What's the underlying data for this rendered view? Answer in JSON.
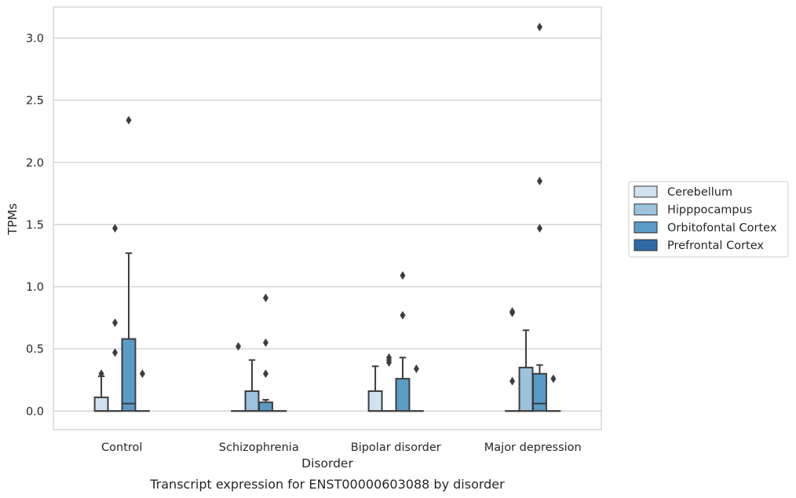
{
  "caption": "Transcript expression for ENST00000603088 by disorder",
  "chart_data": {
    "type": "box",
    "title": "",
    "xlabel": "Disorder",
    "ylabel": "TPMs",
    "ylim": [
      -0.15,
      3.25
    ],
    "yticks": [
      "0.0",
      "0.5",
      "1.0",
      "1.5",
      "2.0",
      "2.5",
      "3.0"
    ],
    "grid": true,
    "legend_position": "right",
    "categories": [
      "Control",
      "Schizophrenia",
      "Bipolar disorder",
      "Major depression"
    ],
    "series": [
      {
        "name": "Cerebellum",
        "color": "#d1e1f0",
        "boxes": [
          {
            "q1": 0.0,
            "median": 0.0,
            "q3": 0.11,
            "whisker_low": 0.0,
            "whisker_high": 0.28,
            "outliers": [
              0.3
            ]
          },
          {
            "q1": 0.0,
            "median": 0.0,
            "q3": 0.0,
            "whisker_low": 0.0,
            "whisker_high": 0.0,
            "outliers": [
              0.52
            ]
          },
          {
            "q1": 0.0,
            "median": 0.0,
            "q3": 0.16,
            "whisker_low": 0.0,
            "whisker_high": 0.36,
            "outliers": []
          },
          {
            "q1": 0.0,
            "median": 0.0,
            "q3": 0.0,
            "whisker_low": 0.0,
            "whisker_high": 0.0,
            "outliers": [
              0.24,
              0.79,
              0.8
            ]
          }
        ]
      },
      {
        "name": "Hipppocampus",
        "color": "#9cc2dd",
        "boxes": [
          {
            "q1": 0.0,
            "median": 0.0,
            "q3": 0.0,
            "whisker_low": 0.0,
            "whisker_high": 0.0,
            "outliers": [
              0.47,
              0.71,
              1.47
            ]
          },
          {
            "q1": 0.0,
            "median": 0.0,
            "q3": 0.16,
            "whisker_low": 0.0,
            "whisker_high": 0.41,
            "outliers": []
          },
          {
            "q1": 0.0,
            "median": 0.0,
            "q3": 0.0,
            "whisker_low": 0.0,
            "whisker_high": 0.0,
            "outliers": [
              0.39,
              0.41,
              0.43
            ]
          },
          {
            "q1": 0.0,
            "median": 0.0,
            "q3": 0.35,
            "whisker_low": 0.0,
            "whisker_high": 0.65,
            "outliers": []
          }
        ]
      },
      {
        "name": "Orbitofontal Cortex",
        "color": "#5a9bc8",
        "boxes": [
          {
            "q1": 0.0,
            "median": 0.06,
            "q3": 0.58,
            "whisker_low": 0.0,
            "whisker_high": 1.27,
            "outliers": [
              2.34
            ]
          },
          {
            "q1": 0.0,
            "median": 0.0,
            "q3": 0.07,
            "whisker_low": 0.0,
            "whisker_high": 0.09,
            "outliers": [
              0.3,
              0.55,
              0.91
            ]
          },
          {
            "q1": 0.0,
            "median": 0.0,
            "q3": 0.26,
            "whisker_low": 0.0,
            "whisker_high": 0.43,
            "outliers": [
              0.77,
              1.09
            ]
          },
          {
            "q1": 0.0,
            "median": 0.06,
            "q3": 0.3,
            "whisker_low": 0.0,
            "whisker_high": 0.37,
            "outliers": [
              1.47,
              1.85,
              3.09
            ]
          }
        ]
      },
      {
        "name": "Prefrontal Cortex",
        "color": "#2d6aa6",
        "boxes": [
          {
            "q1": 0.0,
            "median": 0.0,
            "q3": 0.0,
            "whisker_low": 0.0,
            "whisker_high": 0.0,
            "outliers": [
              0.3
            ]
          },
          {
            "q1": 0.0,
            "median": 0.0,
            "q3": 0.0,
            "whisker_low": 0.0,
            "whisker_high": 0.0,
            "outliers": []
          },
          {
            "q1": 0.0,
            "median": 0.0,
            "q3": 0.0,
            "whisker_low": 0.0,
            "whisker_high": 0.0,
            "outliers": [
              0.34
            ]
          },
          {
            "q1": 0.0,
            "median": 0.0,
            "q3": 0.0,
            "whisker_low": 0.0,
            "whisker_high": 0.0,
            "outliers": [
              0.26
            ]
          }
        ]
      }
    ]
  }
}
